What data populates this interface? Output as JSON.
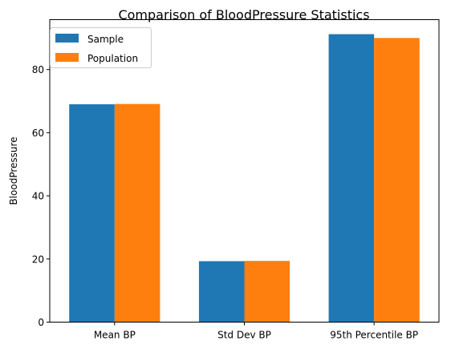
{
  "chart_data": {
    "type": "bar",
    "title": "Comparison of BloodPressure Statistics",
    "xlabel": "",
    "ylabel": "BloodPressure",
    "categories": [
      "Mean BP",
      "Std Dev BP",
      "95th Percentile BP"
    ],
    "series": [
      {
        "name": "Sample",
        "color": "#1f77b4",
        "values": [
          69.0,
          19.3,
          91.2
        ]
      },
      {
        "name": "Population",
        "color": "#ff7f0e",
        "values": [
          69.1,
          19.4,
          90.0
        ]
      }
    ],
    "ylim": [
      0,
      95.8
    ],
    "yticks": [
      0,
      20,
      40,
      60,
      80
    ],
    "grid": false,
    "legend": "top-left"
  }
}
